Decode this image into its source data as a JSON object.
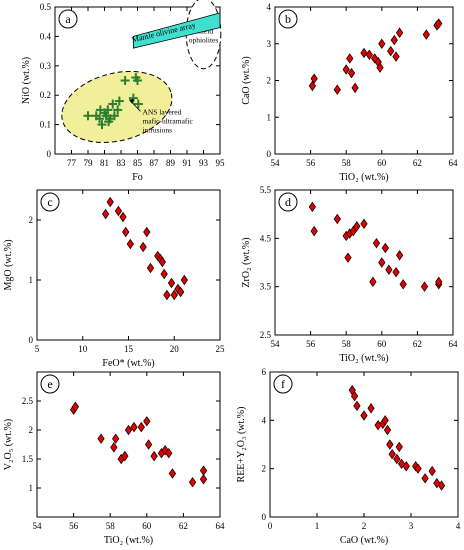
{
  "chart_data": [
    {
      "type": "scatter",
      "panel_label": "a",
      "xlabel": "Fo",
      "ylabel": "NiO (wt.%)",
      "xlim": [
        75,
        95
      ],
      "ylim": [
        0,
        0.5
      ],
      "xticks": [
        "77",
        "79",
        "81",
        "83",
        "85",
        "87",
        "89",
        "91",
        "93",
        "95"
      ],
      "yticks": [
        "0",
        "0.1",
        "0.2",
        "0.3",
        "0.4",
        "0.5"
      ],
      "marker": "plus",
      "marker_color": "#2e7d32",
      "points": [
        [
          79.0,
          0.13
        ],
        [
          80.0,
          0.13
        ],
        [
          80.4,
          0.12
        ],
        [
          80.5,
          0.15
        ],
        [
          80.7,
          0.1
        ],
        [
          81.0,
          0.14
        ],
        [
          81.2,
          0.13
        ],
        [
          81.4,
          0.15
        ],
        [
          81.5,
          0.11
        ],
        [
          81.7,
          0.12
        ],
        [
          82.0,
          0.17
        ],
        [
          82.2,
          0.13
        ],
        [
          82.6,
          0.15
        ],
        [
          82.8,
          0.18
        ],
        [
          83.5,
          0.25
        ],
        [
          84.5,
          0.19
        ],
        [
          84.8,
          0.26
        ],
        [
          85.0,
          0.25
        ],
        [
          85.1,
          0.17
        ]
      ],
      "olivine_array": {
        "label": "Mantle olivine array",
        "polygon": [
          [
            84.5,
            0.36
          ],
          [
            95,
            0.43
          ],
          [
            95,
            0.48
          ],
          [
            84.5,
            0.4
          ]
        ],
        "color": "#40e0d0"
      },
      "ans_field": {
        "label": [
          "ANS layered",
          "mafic-ultramafic",
          "intrusions"
        ],
        "ellipse": {
          "cx": 82.5,
          "cy": 0.16,
          "rx": 6.8,
          "ry": 0.115
        },
        "color": "#f2ef9a"
      },
      "arabian_field": {
        "label": [
          "Arabian",
          "Shield",
          "ophiolites"
        ],
        "ellipse": {
          "cx": 93.0,
          "cy": 0.41,
          "rx": 2.1,
          "ry": 0.12
        }
      }
    },
    {
      "type": "scatter",
      "panel_label": "b",
      "xlabel": "TiO₂ (wt.%)",
      "ylabel": "CaO (wt.%)",
      "xlim": [
        54,
        64
      ],
      "ylim": [
        0,
        4
      ],
      "xticks": [
        "54",
        "56",
        "58",
        "60",
        "62",
        "64"
      ],
      "yticks": [
        "0",
        "1",
        "2",
        "3",
        "4"
      ],
      "marker": "diamond",
      "marker_color": "#e00000",
      "points": [
        [
          56.1,
          1.85
        ],
        [
          56.2,
          2.05
        ],
        [
          57.5,
          1.75
        ],
        [
          58.0,
          2.3
        ],
        [
          58.2,
          2.6
        ],
        [
          58.3,
          2.2
        ],
        [
          58.5,
          1.8
        ],
        [
          59.0,
          2.75
        ],
        [
          59.3,
          2.7
        ],
        [
          59.6,
          2.6
        ],
        [
          59.8,
          2.5
        ],
        [
          59.9,
          2.35
        ],
        [
          60.0,
          3.0
        ],
        [
          60.5,
          2.8
        ],
        [
          60.7,
          3.1
        ],
        [
          60.8,
          2.65
        ],
        [
          61.0,
          3.3
        ],
        [
          62.5,
          3.25
        ],
        [
          63.1,
          3.5
        ],
        [
          63.2,
          3.55
        ]
      ]
    },
    {
      "type": "scatter",
      "panel_label": "c",
      "xlabel": "FeO* (wt.%)",
      "ylabel": "MgO (wt.%)",
      "xlim": [
        5,
        25
      ],
      "ylim": [
        0,
        2.5
      ],
      "xticks": [
        "5",
        "10",
        "15",
        "20",
        "25"
      ],
      "yticks": [
        "0",
        "1",
        "2"
      ],
      "marker": "diamond",
      "marker_color": "#e00000",
      "points": [
        [
          12.5,
          2.1
        ],
        [
          13.0,
          2.3
        ],
        [
          13.9,
          2.15
        ],
        [
          14.4,
          2.05
        ],
        [
          14.7,
          1.8
        ],
        [
          15.2,
          1.6
        ],
        [
          16.6,
          1.55
        ],
        [
          17.0,
          1.8
        ],
        [
          17.4,
          1.2
        ],
        [
          18.2,
          1.4
        ],
        [
          18.5,
          1.35
        ],
        [
          18.7,
          1.3
        ],
        [
          18.9,
          1.1
        ],
        [
          19.2,
          0.75
        ],
        [
          19.7,
          0.95
        ],
        [
          20.0,
          0.75
        ],
        [
          20.4,
          0.85
        ],
        [
          20.7,
          0.8
        ],
        [
          21.1,
          1.0
        ]
      ]
    },
    {
      "type": "scatter",
      "panel_label": "d",
      "xlabel": "TiO₂ (wt.%)",
      "ylabel": "ZrO₂ (wt.%)",
      "xlim": [
        54,
        64
      ],
      "ylim": [
        2.5,
        5.5
      ],
      "xticks": [
        "54",
        "56",
        "58",
        "60",
        "62",
        "64"
      ],
      "yticks": [
        "2.5",
        "3.5",
        "4.5",
        "5.5"
      ],
      "marker": "diamond",
      "marker_color": "#e00000",
      "points": [
        [
          56.1,
          5.15
        ],
        [
          56.2,
          4.65
        ],
        [
          57.5,
          4.9
        ],
        [
          58.0,
          4.55
        ],
        [
          58.1,
          4.1
        ],
        [
          58.2,
          4.6
        ],
        [
          58.4,
          4.65
        ],
        [
          58.6,
          4.75
        ],
        [
          59.0,
          4.8
        ],
        [
          59.5,
          3.6
        ],
        [
          59.7,
          4.4
        ],
        [
          60.0,
          4.0
        ],
        [
          60.2,
          4.3
        ],
        [
          60.4,
          3.85
        ],
        [
          60.8,
          3.8
        ],
        [
          61.0,
          4.15
        ],
        [
          61.2,
          3.55
        ],
        [
          62.4,
          3.5
        ],
        [
          63.2,
          3.55
        ],
        [
          63.2,
          3.6
        ]
      ]
    },
    {
      "type": "scatter",
      "panel_label": "e",
      "xlabel": "TiO₂ (wt.%)",
      "ylabel": "V₂O₅ (wt.%)",
      "xlim": [
        54,
        64
      ],
      "ylim": [
        0.5,
        3
      ],
      "xticks": [
        "54",
        "56",
        "58",
        "60",
        "62",
        "64"
      ],
      "yticks": [
        "1",
        "1.5",
        "2",
        "2.5"
      ],
      "marker": "diamond",
      "marker_color": "#e00000",
      "points": [
        [
          56.0,
          2.35
        ],
        [
          56.1,
          2.4
        ],
        [
          57.5,
          1.85
        ],
        [
          58.2,
          1.7
        ],
        [
          58.3,
          1.85
        ],
        [
          58.6,
          1.5
        ],
        [
          58.8,
          1.55
        ],
        [
          59.0,
          2.0
        ],
        [
          59.3,
          2.05
        ],
        [
          59.7,
          2.05
        ],
        [
          60.0,
          2.15
        ],
        [
          60.1,
          1.75
        ],
        [
          60.4,
          1.55
        ],
        [
          60.8,
          1.6
        ],
        [
          61.0,
          1.65
        ],
        [
          61.2,
          1.6
        ],
        [
          61.4,
          1.25
        ],
        [
          62.5,
          1.1
        ],
        [
          63.1,
          1.15
        ],
        [
          63.1,
          1.3
        ]
      ]
    },
    {
      "type": "scatter",
      "panel_label": "f",
      "xlabel": "CaO (wt.%)",
      "ylabel": "REE+Y₂O₃ (wt.%)",
      "xlim": [
        0,
        4
      ],
      "ylim": [
        0,
        6
      ],
      "xticks": [
        "0",
        "1",
        "2",
        "3",
        "4"
      ],
      "yticks": [
        "0",
        "2",
        "4",
        "6"
      ],
      "marker": "diamond",
      "marker_color": "#e00000",
      "points": [
        [
          1.75,
          5.25
        ],
        [
          1.8,
          5.0
        ],
        [
          1.85,
          4.6
        ],
        [
          2.0,
          4.2
        ],
        [
          2.15,
          4.5
        ],
        [
          2.3,
          3.8
        ],
        [
          2.4,
          3.85
        ],
        [
          2.45,
          4.0
        ],
        [
          2.5,
          3.6
        ],
        [
          2.55,
          3.0
        ],
        [
          2.6,
          2.6
        ],
        [
          2.7,
          2.4
        ],
        [
          2.75,
          2.9
        ],
        [
          2.8,
          2.2
        ],
        [
          2.9,
          2.1
        ],
        [
          3.1,
          2.1
        ],
        [
          3.15,
          2.0
        ],
        [
          3.3,
          1.6
        ],
        [
          3.45,
          1.9
        ],
        [
          3.55,
          1.4
        ],
        [
          3.65,
          1.3
        ]
      ]
    }
  ]
}
